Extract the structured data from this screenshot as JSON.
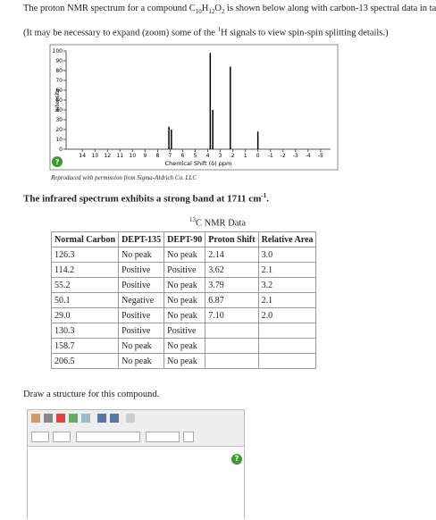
{
  "intro": [
    "The proton NMR spectrum for a compound C",
    "10",
    "H",
    "12",
    "O",
    "2",
    " is shown below along with carbon-13 spectral data in ta"
  ],
  "note": [
    "(It may be necessary to expand (zoom) some of the ",
    "1",
    "H signals to view spin-spin splitting details.)"
  ],
  "chart_data": {
    "type": "stem",
    "x": [
      7.1,
      6.9,
      3.8,
      3.6,
      2.2,
      0
    ],
    "values": [
      23,
      20,
      98,
      40,
      84,
      18
    ],
    "color": "#000000",
    "xlim": [
      15.3,
      -5.8
    ],
    "xticks": [
      14,
      13,
      12,
      11,
      10,
      9,
      8,
      7,
      6,
      5,
      4,
      3,
      2,
      1,
      0,
      -1,
      -2,
      -3,
      -4,
      -5
    ],
    "ylim": [
      0,
      100
    ],
    "yticks": [
      0,
      10,
      20,
      30,
      40,
      50,
      60,
      70,
      80,
      90,
      100
    ],
    "xlabel": "Chemical Shift (δ) ppm",
    "ylabel": "Intensity"
  },
  "credit": "Reproduced with permission from Sigma-Aldrich Co. LLC",
  "ir": [
    "The infrared spectrum exhibits a strong band at 1711 cm",
    "-1",
    "."
  ],
  "table": {
    "caption": [
      "13",
      "C NMR Data"
    ],
    "columns": [
      "Normal Carbon",
      "DEPT-135",
      "DEPT-90",
      "Proton Shift",
      "Relative Area"
    ],
    "rows": [
      [
        "126.3",
        "No peak",
        "No peak",
        "2.14",
        "3.0"
      ],
      [
        "114.2",
        "Positive",
        "Positive",
        "3.62",
        "2.1"
      ],
      [
        "55.2",
        "Positive",
        "No peak",
        "3.79",
        "3.2"
      ],
      [
        "50.1",
        "Negative",
        "No peak",
        "6.87",
        "2.1"
      ],
      [
        "29.0",
        "Positive",
        "No peak",
        "7.10",
        "2.0"
      ],
      [
        "130.3",
        "Positive",
        "Positive"
      ],
      [
        "158.7",
        "No peak",
        "No peak"
      ],
      [
        "206.5",
        "No peak",
        "No peak"
      ]
    ]
  },
  "prompt": "Draw a structure for this compound.",
  "help": "?"
}
